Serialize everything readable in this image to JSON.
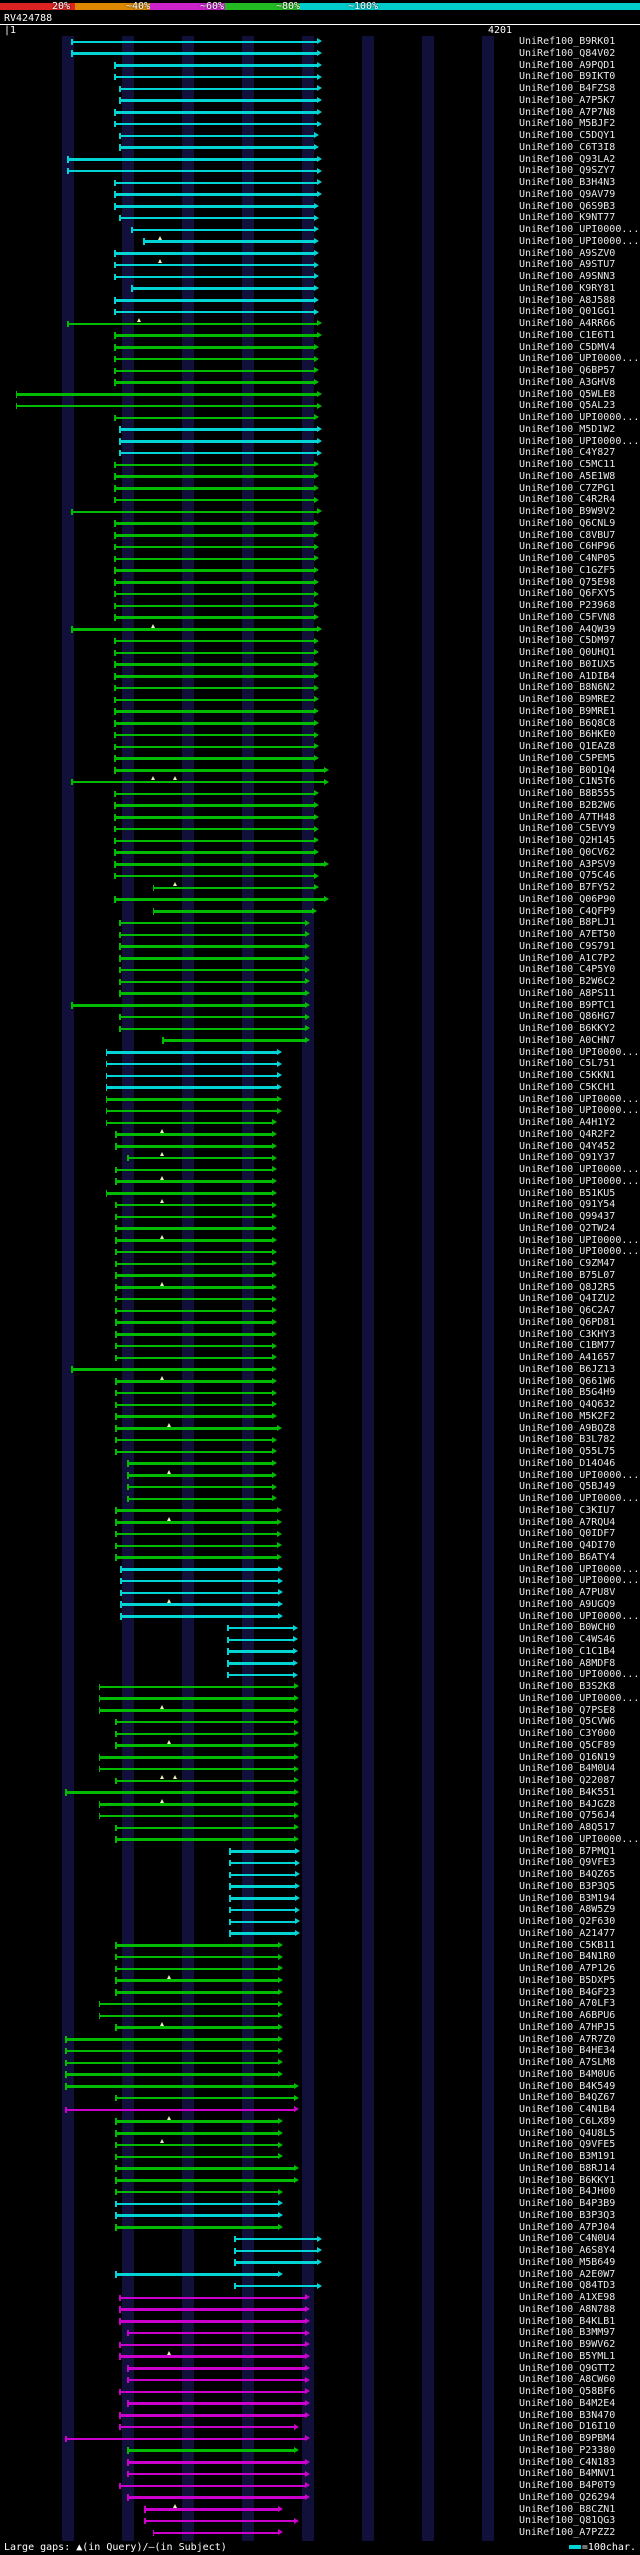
{
  "header": {
    "identity_key": {
      "labels": [
        "20%",
        "~40%",
        "~60%",
        "~80%",
        "~100%"
      ],
      "colors": [
        "#dd2222",
        "#dd8800",
        "#cc22cc",
        "#22bb22",
        "#00cccc"
      ]
    },
    "query_title": "RV424788",
    "ruler": {
      "start_label": "|1",
      "end_label": "4201"
    }
  },
  "footer": {
    "gaps_legend": "Large gaps: ▲(in Query)/—(in Subject)",
    "scale_legend": "=100char."
  },
  "chart_data": {
    "type": "bar",
    "subtype": "blast-alignment-overview",
    "title": "RV424788",
    "xlabel": "query position (residues)",
    "x_range": [
      1,
      4201
    ],
    "grid_interval": 500,
    "legend_position": "top",
    "identity_scale": [
      {
        "label": "20%",
        "color": "#dd2222"
      },
      {
        "label": "~40%",
        "color": "#dd8800"
      },
      {
        "label": "~60%",
        "color": "#cc22cc"
      },
      {
        "label": "~80%",
        "color": "#22bb22"
      },
      {
        "label": "~100%",
        "color": "#00cccc"
      }
    ],
    "color_classes": {
      "c": "#00d4d4",
      "g": "#00bb00",
      "m": "#cc00cc"
    },
    "label_prefix": "UniRef100_",
    "rows": [
      [
        "B9RK01",
        "c",
        530,
        2620
      ],
      [
        "Q84V02",
        "c",
        530,
        2620
      ],
      [
        "A9PQD1",
        "c",
        890,
        2620
      ],
      [
        "B9IKT0",
        "c",
        890,
        2620
      ],
      [
        "B4FZS8",
        "c",
        930,
        2620
      ],
      [
        "A7P5K7",
        "c",
        930,
        2620
      ],
      [
        "A7P7N8",
        "c",
        890,
        2620
      ],
      [
        "M5BJF2",
        "c",
        890,
        2620
      ],
      [
        "C5DQY1",
        "c",
        930,
        2600
      ],
      [
        "C6T3I8",
        "c",
        930,
        2600
      ],
      [
        "Q93LA2",
        "c",
        500,
        2620
      ],
      [
        "Q9SZY7",
        "c",
        500,
        2620
      ],
      [
        "B3H4N3",
        "c",
        890,
        2620
      ],
      [
        "Q9AV79",
        "c",
        890,
        2620
      ],
      [
        "Q6S9B3",
        "c",
        890,
        2600
      ],
      [
        "K9NT77",
        "c",
        930,
        2600
      ],
      [
        "UPI0000...",
        "c",
        1030,
        2600
      ],
      [
        "UPI0000...",
        "c",
        1130,
        2600,
        [
          1270
        ]
      ],
      [
        "A9SZV0",
        "c",
        890,
        2600
      ],
      [
        "A9STU7",
        "c",
        890,
        2600,
        [
          1270
        ]
      ],
      [
        "A9SNN3",
        "c",
        890,
        2600
      ],
      [
        "K9RY81",
        "c",
        1030,
        2600
      ],
      [
        "A8J588",
        "c",
        890,
        2600
      ],
      [
        "Q01GG1",
        "c",
        890,
        2600
      ],
      [
        "A4RR66",
        "g",
        500,
        2620,
        [
          1100
        ]
      ],
      [
        "C1E6T1",
        "g",
        890,
        2620
      ],
      [
        "C5DMV4",
        "g",
        890,
        2600
      ],
      [
        "UPI0000...",
        "g",
        890,
        2600
      ],
      [
        "Q6BP57",
        "g",
        890,
        2600
      ],
      [
        "A3GHV8",
        "g",
        890,
        2600
      ],
      [
        "Q5WLE8",
        "g",
        70,
        2620
      ],
      [
        "Q5AL23",
        "g",
        70,
        2620
      ],
      [
        "UPI0000...",
        "g",
        890,
        2600
      ],
      [
        "M5D1W2",
        "c",
        930,
        2620
      ],
      [
        "UPI0000...",
        "c",
        930,
        2620
      ],
      [
        "C4Y827",
        "c",
        930,
        2620
      ],
      [
        "C5MC11",
        "g",
        890,
        2600
      ],
      [
        "A5E1W8",
        "g",
        890,
        2600
      ],
      [
        "C7ZPG1",
        "g",
        890,
        2600
      ],
      [
        "C4R2R4",
        "g",
        890,
        2600
      ],
      [
        "B9W9V2",
        "g",
        530,
        2620
      ],
      [
        "Q6CNL9",
        "g",
        890,
        2600
      ],
      [
        "C8VBU7",
        "g",
        890,
        2600
      ],
      [
        "C6HP96",
        "g",
        890,
        2600
      ],
      [
        "C4NP05",
        "g",
        890,
        2600
      ],
      [
        "C1GZF5",
        "g",
        890,
        2600
      ],
      [
        "Q75E98",
        "g",
        890,
        2600
      ],
      [
        "Q6FXY5",
        "g",
        890,
        2600
      ],
      [
        "P23968",
        "g",
        890,
        2600
      ],
      [
        "C5FVN8",
        "g",
        890,
        2600
      ],
      [
        "A4QW39",
        "g",
        530,
        2620,
        [
          1210
        ]
      ],
      [
        "C5DM97",
        "g",
        890,
        2600
      ],
      [
        "Q0UHQ1",
        "g",
        890,
        2600
      ],
      [
        "B0IUX5",
        "g",
        890,
        2600
      ],
      [
        "A1DIB4",
        "g",
        890,
        2600
      ],
      [
        "B8N6N2",
        "g",
        890,
        2600
      ],
      [
        "B9MRE2",
        "g",
        890,
        2600
      ],
      [
        "B9MRE1",
        "g",
        890,
        2600
      ],
      [
        "B6Q8C8",
        "g",
        890,
        2600
      ],
      [
        "B6HKE0",
        "g",
        890,
        2600
      ],
      [
        "Q1EAZ8",
        "g",
        890,
        2600
      ],
      [
        "C5PEM5",
        "g",
        890,
        2600
      ],
      [
        "B0D1Q4",
        "g",
        890,
        2680
      ],
      [
        "C1N5T6",
        "g",
        530,
        2680,
        [
          1210,
          1400
        ]
      ],
      [
        "B8B555",
        "g",
        890,
        2600
      ],
      [
        "B2B2W6",
        "g",
        890,
        2600
      ],
      [
        "A7TH48",
        "g",
        890,
        2600
      ],
      [
        "C5EVY9",
        "g",
        890,
        2600
      ],
      [
        "Q2H145",
        "g",
        890,
        2600
      ],
      [
        "Q0CV62",
        "g",
        890,
        2600
      ],
      [
        "A3PSV9",
        "g",
        890,
        2680
      ],
      [
        "Q75C46",
        "g",
        890,
        2600
      ],
      [
        "B7FY52",
        "g",
        1210,
        2600,
        [
          1400
        ]
      ],
      [
        "Q06P90",
        "g",
        890,
        2680
      ],
      [
        "C4QFP9",
        "g",
        1210,
        2580
      ],
      [
        "B8PLJ1",
        "g",
        930,
        2520
      ],
      [
        "A7ET50",
        "g",
        930,
        2520
      ],
      [
        "C9S791",
        "g",
        930,
        2520
      ],
      [
        "A1C7P2",
        "g",
        930,
        2520
      ],
      [
        "C4P5Y0",
        "g",
        930,
        2520
      ],
      [
        "B2W6C2",
        "g",
        930,
        2520
      ],
      [
        "A8PS11",
        "g",
        930,
        2520
      ],
      [
        "B9PTC1",
        "g",
        530,
        2520
      ],
      [
        "Q86HG7",
        "g",
        930,
        2520
      ],
      [
        "B6KKY2",
        "g",
        930,
        2520
      ],
      [
        "A0CHN7",
        "g",
        1290,
        2520
      ],
      [
        "UPI0000...",
        "c",
        820,
        2290
      ],
      [
        "C5L751",
        "c",
        820,
        2290
      ],
      [
        "C5KKN1",
        "c",
        820,
        2290
      ],
      [
        "C5KCH1",
        "c",
        820,
        2290
      ],
      [
        "UPI0000...",
        "g",
        820,
        2290
      ],
      [
        "UPI0000...",
        "g",
        820,
        2290
      ],
      [
        "A4H1Y2",
        "g",
        820,
        2250
      ],
      [
        "Q4R2F2",
        "g",
        900,
        2250,
        [
          1290
        ]
      ],
      [
        "Q4Y452",
        "g",
        900,
        2250
      ],
      [
        "Q91Y37",
        "g",
        1000,
        2250,
        [
          1290
        ]
      ],
      [
        "UPI0000...",
        "g",
        900,
        2250
      ],
      [
        "UPI0000...",
        "g",
        900,
        2250,
        [
          1290
        ]
      ],
      [
        "B51KU5",
        "g",
        820,
        2250
      ],
      [
        "Q91Y54",
        "g",
        900,
        2250,
        [
          1290
        ]
      ],
      [
        "Q99437",
        "g",
        900,
        2250
      ],
      [
        "Q2TW24",
        "g",
        900,
        2250
      ],
      [
        "UPI0000...",
        "g",
        900,
        2250,
        [
          1290
        ]
      ],
      [
        "UPI0000...",
        "g",
        900,
        2250
      ],
      [
        "C9ZM47",
        "g",
        900,
        2250
      ],
      [
        "B75L07",
        "g",
        900,
        2250
      ],
      [
        "Q8J2R5",
        "g",
        900,
        2250,
        [
          1290
        ]
      ],
      [
        "Q4IZU2",
        "g",
        900,
        2250
      ],
      [
        "Q6C2A7",
        "g",
        900,
        2250
      ],
      [
        "Q6PD81",
        "g",
        900,
        2250
      ],
      [
        "C3KHY3",
        "g",
        900,
        2250
      ],
      [
        "C1BM77",
        "g",
        900,
        2250
      ],
      [
        "A41657",
        "g",
        900,
        2250
      ],
      [
        "B6JZ13",
        "g",
        530,
        2250
      ],
      [
        "Q661W6",
        "g",
        900,
        2250,
        [
          1290
        ]
      ],
      [
        "B5G4H9",
        "g",
        900,
        2250
      ],
      [
        "Q4Q632",
        "g",
        900,
        2250
      ],
      [
        "M5K2F2",
        "g",
        900,
        2250
      ],
      [
        "A9BQZ8",
        "g",
        900,
        2290,
        [
          1350
        ]
      ],
      [
        "B3L782",
        "g",
        900,
        2250
      ],
      [
        "Q55L75",
        "g",
        900,
        2250
      ],
      [
        "D14O46",
        "g",
        1000,
        2250
      ],
      [
        "UPI0000...",
        "g",
        1000,
        2250,
        [
          1350
        ]
      ],
      [
        "Q5BJ49",
        "g",
        1000,
        2250
      ],
      [
        "UPI0000...",
        "g",
        1000,
        2250
      ],
      [
        "C3KIU7",
        "g",
        900,
        2290
      ],
      [
        "A7RQU4",
        "g",
        900,
        2290,
        [
          1350
        ]
      ],
      [
        "Q0IDF7",
        "g",
        900,
        2290
      ],
      [
        "Q4DI70",
        "g",
        900,
        2290
      ],
      [
        "B6ATY4",
        "g",
        900,
        2290
      ],
      [
        "UPI0000...",
        "c",
        940,
        2300
      ],
      [
        "UPI0000...",
        "c",
        940,
        2300
      ],
      [
        "A7PU8V",
        "c",
        940,
        2300
      ],
      [
        "A9UGQ9",
        "c",
        940,
        2300,
        [
          1350
        ]
      ],
      [
        "UPI0000...",
        "c",
        940,
        2300
      ],
      [
        "B0WCH0",
        "c",
        1830,
        2420
      ],
      [
        "C4WS46",
        "c",
        1830,
        2420
      ],
      [
        "C1C1B4",
        "c",
        1830,
        2420
      ],
      [
        "A8MDF8",
        "c",
        1830,
        2420
      ],
      [
        "UPI0000...",
        "c",
        1830,
        2420
      ],
      [
        "B3S2K8",
        "g",
        760,
        2430
      ],
      [
        "UPI0000...",
        "g",
        760,
        2430
      ],
      [
        "Q7PSE8",
        "g",
        760,
        2430,
        [
          1290
        ]
      ],
      [
        "Q5CVW6",
        "g",
        900,
        2430
      ],
      [
        "C3Y000",
        "g",
        900,
        2430
      ],
      [
        "Q5CF89",
        "g",
        900,
        2430,
        [
          1350
        ]
      ],
      [
        "Q16N19",
        "g",
        760,
        2430
      ],
      [
        "B4M0U4",
        "g",
        760,
        2430
      ],
      [
        "Q22087",
        "g",
        900,
        2430,
        [
          1290,
          1400
        ]
      ],
      [
        "B4K551",
        "g",
        480,
        2430
      ],
      [
        "B4JGZ8",
        "g",
        760,
        2430,
        [
          1290
        ]
      ],
      [
        "Q756J4",
        "g",
        760,
        2430
      ],
      [
        "A8Q517",
        "g",
        900,
        2430
      ],
      [
        "UPI0000...",
        "g",
        900,
        2430
      ],
      [
        "B7PMQ1",
        "c",
        1850,
        2440
      ],
      [
        "Q9VFE3",
        "c",
        1850,
        2440
      ],
      [
        "B4QZ65",
        "c",
        1850,
        2440
      ],
      [
        "B3P3Q5",
        "c",
        1850,
        2440
      ],
      [
        "B3M194",
        "c",
        1850,
        2440
      ],
      [
        "A8W5Z9",
        "c",
        1850,
        2440
      ],
      [
        "Q2F630",
        "c",
        1850,
        2440
      ],
      [
        "A21477",
        "c",
        1850,
        2440
      ],
      [
        "C5KB11",
        "g",
        900,
        2300
      ],
      [
        "B4N1R0",
        "g",
        900,
        2300
      ],
      [
        "A7P126",
        "g",
        900,
        2300
      ],
      [
        "B5DXP5",
        "g",
        900,
        2300,
        [
          1350
        ]
      ],
      [
        "B4GF23",
        "g",
        900,
        2300
      ],
      [
        "A70LF3",
        "g",
        760,
        2300
      ],
      [
        "A6BPU6",
        "g",
        760,
        2300
      ],
      [
        "A7HPJ5",
        "g",
        900,
        2300,
        [
          1290
        ]
      ],
      [
        "A7R7Z0",
        "g",
        480,
        2300
      ],
      [
        "B4HE34",
        "g",
        480,
        2300
      ],
      [
        "A7SLM8",
        "g",
        480,
        2300
      ],
      [
        "B4M0U6",
        "g",
        480,
        2300
      ],
      [
        "B4K549",
        "g",
        480,
        2430
      ],
      [
        "B4QZ67",
        "g",
        900,
        2430
      ],
      [
        "C4N1B4",
        "m",
        480,
        2430
      ],
      [
        "C6LX89",
        "g",
        900,
        2300,
        [
          1350
        ]
      ],
      [
        "Q4U8L5",
        "g",
        900,
        2300
      ],
      [
        "Q9VFE5",
        "g",
        900,
        2300,
        [
          1290
        ]
      ],
      [
        "B3M191",
        "g",
        900,
        2300
      ],
      [
        "B8RJ14",
        "g",
        900,
        2430
      ],
      [
        "B6KKY1",
        "g",
        900,
        2430
      ],
      [
        "B4JH00",
        "g",
        900,
        2300
      ],
      [
        "B4P3B9",
        "c",
        900,
        2300
      ],
      [
        "B3P3Q3",
        "c",
        900,
        2300
      ],
      [
        "A7PJ04",
        "g",
        900,
        2300
      ],
      [
        "C4N0U4",
        "c",
        1890,
        2620
      ],
      [
        "A6S8Y4",
        "c",
        1890,
        2620
      ],
      [
        "M5B649",
        "c",
        1890,
        2620
      ],
      [
        "A2E0W7",
        "c",
        900,
        2300
      ],
      [
        "Q84TD3",
        "c",
        1890,
        2620
      ],
      [
        "A1XE98",
        "m",
        930,
        2520
      ],
      [
        "A8N788",
        "m",
        930,
        2520
      ],
      [
        "B4KLB1",
        "m",
        930,
        2520
      ],
      [
        "B3MM97",
        "m",
        1000,
        2520
      ],
      [
        "B9WV62",
        "m",
        930,
        2520
      ],
      [
        "B5YML1",
        "m",
        930,
        2520,
        [
          1350
        ]
      ],
      [
        "Q9GTT2",
        "m",
        1000,
        2520
      ],
      [
        "A8CW60",
        "m",
        1000,
        2520
      ],
      [
        "Q58BF6",
        "m",
        930,
        2520
      ],
      [
        "B4M2E4",
        "m",
        1000,
        2520
      ],
      [
        "B3N470",
        "m",
        930,
        2520
      ],
      [
        "D16I10",
        "m",
        930,
        2430
      ],
      [
        "B9PBM4",
        "m",
        480,
        2520
      ],
      [
        "P23380",
        "g",
        1000,
        2430
      ],
      [
        "C4N183",
        "m",
        1000,
        2520
      ],
      [
        "B4MNV1",
        "m",
        1000,
        2520
      ],
      [
        "B4P0T9",
        "m",
        930,
        2520
      ],
      [
        "Q26294",
        "m",
        1000,
        2520
      ],
      [
        "B8CZN1",
        "m",
        1140,
        2300,
        [
          1400
        ]
      ],
      [
        "Q81QG3",
        "m",
        1140,
        2430
      ],
      [
        "A7PZZ2",
        "m",
        1210,
        2300
      ]
    ]
  }
}
